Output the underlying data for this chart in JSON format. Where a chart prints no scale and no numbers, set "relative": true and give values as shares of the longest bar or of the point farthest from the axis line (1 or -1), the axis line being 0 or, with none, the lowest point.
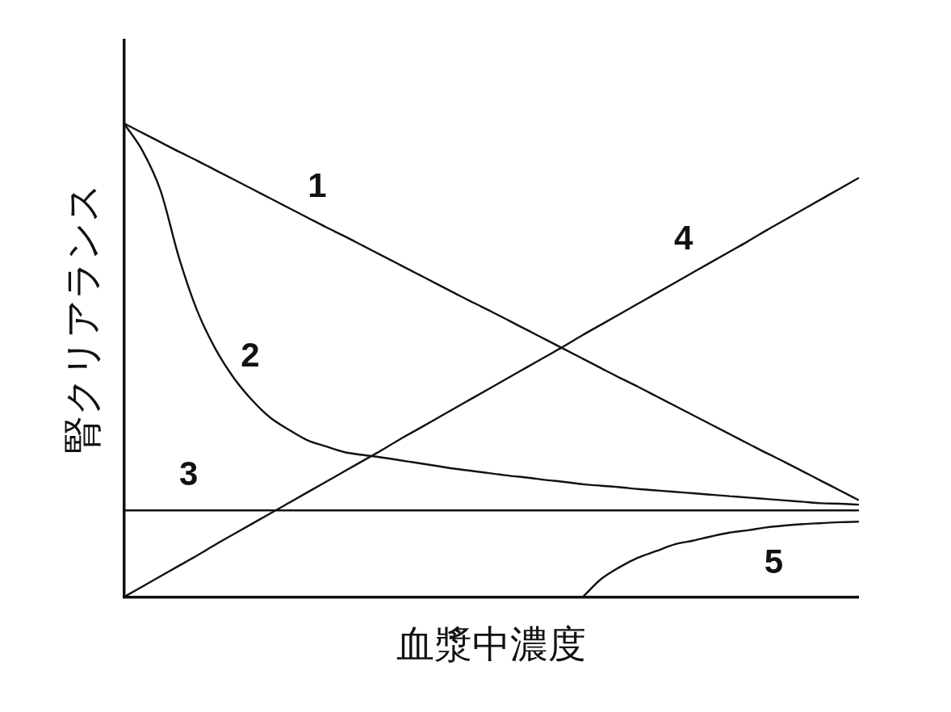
{
  "chart_data": {
    "type": "line",
    "relative": true,
    "xlabel": "血漿中濃度",
    "ylabel": "腎クリアランス",
    "categories": [
      null,
      null,
      null,
      null,
      null,
      null,
      null,
      null,
      null,
      null,
      null,
      null,
      null,
      null,
      null,
      null,
      null,
      null,
      null,
      null,
      null,
      null,
      null,
      null,
      null,
      null,
      null,
      null,
      null,
      null,
      null,
      null,
      null,
      null,
      null,
      null,
      null,
      null,
      null,
      null,
      null
    ],
    "series": [
      {
        "name": "1",
        "color": "#111111",
        "values": [
          1,
          0.98,
          0.96,
          0.94,
          0.921,
          0.901,
          0.881,
          0.861,
          0.841,
          0.821,
          0.801,
          0.781,
          0.762,
          0.742,
          0.722,
          0.702,
          0.682,
          0.662,
          0.642,
          0.622,
          0.603,
          0.583,
          0.563,
          0.543,
          0.523,
          0.503,
          0.483,
          0.463,
          0.444,
          0.424,
          0.404,
          0.384,
          0.364,
          0.344,
          0.324,
          0.304,
          0.285,
          0.265,
          0.245,
          0.225,
          0.205
        ]
      },
      {
        "name": "2",
        "color": "#111111",
        "values": [
          1,
          0.943,
          0.858,
          0.717,
          0.604,
          0.523,
          0.462,
          0.415,
          0.378,
          0.353,
          0.331,
          0.318,
          0.306,
          0.3,
          0.295,
          0.289,
          0.283,
          0.277,
          0.271,
          0.266,
          0.261,
          0.256,
          0.252,
          0.247,
          0.243,
          0.238,
          0.235,
          0.232,
          0.228,
          0.225,
          0.222,
          0.219,
          0.216,
          0.213,
          0.21,
          0.207,
          0.204,
          0.201,
          0.198,
          0.197,
          0.195
        ]
      },
      {
        "name": "3",
        "color": "#111111",
        "values": [
          0.183,
          0.183,
          0.183,
          0.183,
          0.183,
          0.183,
          0.183,
          0.183,
          0.183,
          0.183,
          0.183,
          0.183,
          0.183,
          0.183,
          0.183,
          0.183,
          0.183,
          0.183,
          0.183,
          0.183,
          0.183,
          0.183,
          0.183,
          0.183,
          0.183,
          0.183,
          0.183,
          0.183,
          0.183,
          0.183,
          0.183,
          0.183,
          0.183,
          0.183,
          0.183,
          0.183,
          0.183,
          0.183,
          0.183,
          0.183,
          0.183
        ]
      },
      {
        "name": "4",
        "color": "#111111",
        "values": [
          0,
          0.022,
          0.044,
          0.066,
          0.088,
          0.111,
          0.133,
          0.155,
          0.177,
          0.199,
          0.221,
          0.243,
          0.265,
          0.287,
          0.309,
          0.332,
          0.354,
          0.376,
          0.398,
          0.42,
          0.442,
          0.464,
          0.486,
          0.508,
          0.53,
          0.553,
          0.575,
          0.597,
          0.619,
          0.641,
          0.663,
          0.685,
          0.707,
          0.729,
          0.751,
          0.774,
          0.796,
          0.818,
          0.84,
          0.862,
          0.884
        ]
      },
      {
        "name": "5",
        "color": "#111111",
        "values": [
          null,
          null,
          null,
          null,
          null,
          null,
          null,
          null,
          null,
          null,
          null,
          null,
          null,
          null,
          null,
          null,
          null,
          null,
          null,
          null,
          null,
          null,
          null,
          null,
          null,
          0,
          0.038,
          0.063,
          0.083,
          0.097,
          0.111,
          0.119,
          0.128,
          0.136,
          0.141,
          0.147,
          0.151,
          0.154,
          0.156,
          0.158,
          0.159
        ]
      }
    ],
    "marker": "none",
    "line_style": "solid",
    "legend": false,
    "grid": false
  }
}
